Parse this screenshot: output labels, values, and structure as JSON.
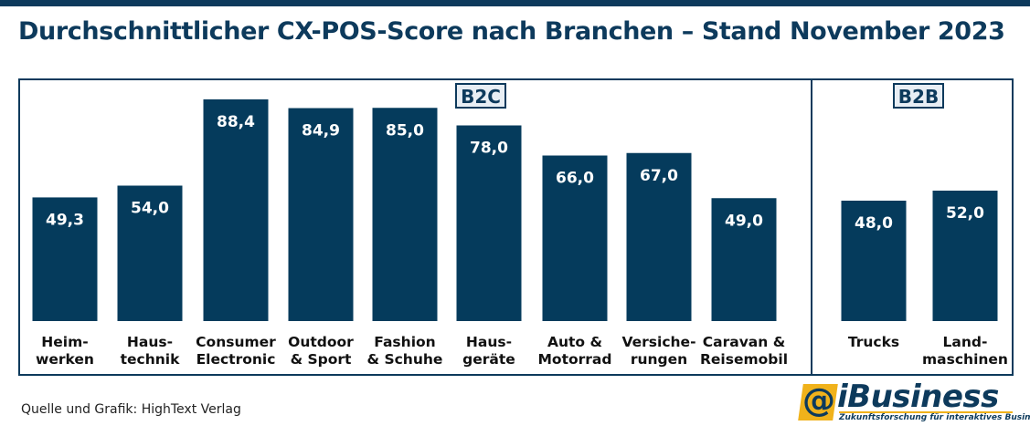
{
  "title": "Durchschnittlicher CX-POS-Score nach Branchen – Stand November 2023",
  "groups": {
    "b2c": "B2C",
    "b2b": "B2B"
  },
  "source": "Quelle und Grafik: HighText Verlag",
  "logo": {
    "mark": "@",
    "word": "iBusiness",
    "tagline": "Zukunftsforschung für interaktives Business"
  },
  "colors": {
    "bar": "#053b5c",
    "accent": "#f0b21b",
    "frame": "#0d3a5c"
  },
  "chart_data": {
    "type": "bar",
    "title": "Durchschnittlicher CX-POS-Score nach Branchen – Stand November 2023",
    "categories": [
      [
        "Heim-",
        "werken"
      ],
      [
        "Haus-",
        "technik"
      ],
      [
        "Consumer",
        "Electronic"
      ],
      [
        "Outdoor",
        "& Sport"
      ],
      [
        "Fashion",
        "& Schuhe"
      ],
      [
        "Haus-",
        "geräte"
      ],
      [
        "Auto &",
        "Motorrad"
      ],
      [
        "Versiche-",
        "rungen"
      ],
      [
        "Caravan &",
        "Reisemobil"
      ],
      [
        "Trucks"
      ],
      [
        "Land-",
        "maschinen"
      ]
    ],
    "values": [
      49.3,
      54.0,
      88.4,
      84.9,
      85.0,
      78.0,
      66.0,
      67.0,
      49.0,
      48.0,
      52.0
    ],
    "value_labels": [
      "49,3",
      "54,0",
      "88,4",
      "84,9",
      "85,0",
      "78,0",
      "66,0",
      "67,0",
      "49,0",
      "48,0",
      "52,0"
    ],
    "group": [
      "B2C",
      "B2C",
      "B2C",
      "B2C",
      "B2C",
      "B2C",
      "B2C",
      "B2C",
      "B2C",
      "B2B",
      "B2B"
    ],
    "grid": false,
    "legend": "none"
  }
}
